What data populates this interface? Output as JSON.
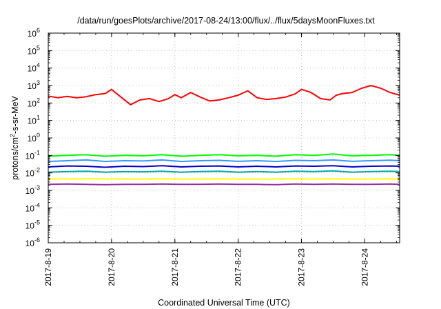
{
  "chart_data": {
    "type": "line",
    "title": "/data/run/goesPlots/archive/2017-08-24/13:00/flux/../flux/5daysMoonFluxes.txt",
    "xlabel": "Coordinated Universal Time (UTC)",
    "ylabel_parts": [
      "protons/cm",
      "2",
      "-s-sr-MeV"
    ],
    "y_scale": "log",
    "ylim_exp": [
      -6,
      6
    ],
    "xlim_day_offsets": [
      0,
      5.55
    ],
    "x_tick_labels": [
      "2017-8-19",
      "2017-8-20",
      "2017-8-21",
      "2017-8-22",
      "2017-8-23",
      "2017-8-24"
    ],
    "x_tick_day_offsets": [
      0,
      1,
      2,
      3,
      4,
      5
    ],
    "y_tick_exponents": [
      -6,
      -5,
      -4,
      -3,
      -2,
      -1,
      0,
      1,
      2,
      3,
      4,
      5,
      6
    ],
    "y_tick_base": "10",
    "grid": true,
    "legend": "none",
    "series": [
      {
        "color": "#ff0000",
        "approx": true,
        "x": [
          0.0,
          0.15,
          0.3,
          0.45,
          0.6,
          0.75,
          0.9,
          1.0,
          1.1,
          1.3,
          1.45,
          1.6,
          1.75,
          1.9,
          2.0,
          2.1,
          2.25,
          2.4,
          2.55,
          2.7,
          2.85,
          3.0,
          3.15,
          3.3,
          3.45,
          3.6,
          3.75,
          3.9,
          4.0,
          4.15,
          4.3,
          4.45,
          4.55,
          4.65,
          4.8,
          4.95,
          5.1,
          5.25,
          5.4,
          5.55
        ],
        "values": [
          250,
          200,
          240,
          200,
          230,
          300,
          350,
          600,
          300,
          80,
          150,
          180,
          120,
          180,
          300,
          200,
          400,
          220,
          130,
          150,
          200,
          280,
          500,
          200,
          160,
          180,
          220,
          330,
          600,
          400,
          180,
          150,
          280,
          350,
          400,
          700,
          1000,
          700,
          400,
          280
        ]
      },
      {
        "color": "#00ff00",
        "approx": true,
        "x": [
          0.0,
          0.3,
          0.6,
          0.9,
          1.2,
          1.5,
          1.8,
          2.1,
          2.4,
          2.7,
          3.0,
          3.3,
          3.6,
          3.9,
          4.2,
          4.5,
          4.8,
          5.1,
          5.4,
          5.55
        ],
        "values": [
          0.09,
          0.1,
          0.11,
          0.09,
          0.1,
          0.095,
          0.11,
          0.09,
          0.1,
          0.11,
          0.095,
          0.1,
          0.09,
          0.11,
          0.1,
          0.12,
          0.095,
          0.1,
          0.11,
          0.1
        ]
      },
      {
        "color": "#3399ff",
        "approx": true,
        "x": [
          0.0,
          0.3,
          0.6,
          0.9,
          1.2,
          1.5,
          1.8,
          2.1,
          2.4,
          2.7,
          3.0,
          3.3,
          3.6,
          3.9,
          4.2,
          4.5,
          4.8,
          5.1,
          5.4,
          5.55
        ],
        "values": [
          0.045,
          0.05,
          0.055,
          0.045,
          0.05,
          0.048,
          0.055,
          0.045,
          0.05,
          0.052,
          0.046,
          0.05,
          0.045,
          0.052,
          0.05,
          0.055,
          0.046,
          0.05,
          0.053,
          0.05
        ]
      },
      {
        "color": "#0000cc",
        "approx": true,
        "x": [
          0.0,
          0.3,
          0.6,
          0.9,
          1.2,
          1.5,
          1.8,
          2.1,
          2.4,
          2.7,
          3.0,
          3.3,
          3.6,
          3.9,
          4.2,
          4.5,
          4.8,
          5.1,
          5.4,
          5.55
        ],
        "values": [
          0.022,
          0.025,
          0.024,
          0.021,
          0.024,
          0.023,
          0.026,
          0.022,
          0.024,
          0.025,
          0.022,
          0.024,
          0.022,
          0.025,
          0.024,
          0.026,
          0.022,
          0.024,
          0.025,
          0.024
        ]
      },
      {
        "color": "#00aaaa",
        "approx": true,
        "x": [
          0.0,
          0.3,
          0.6,
          0.9,
          1.2,
          1.5,
          1.8,
          2.1,
          2.4,
          2.7,
          3.0,
          3.3,
          3.6,
          3.9,
          4.2,
          4.5,
          4.8,
          5.1,
          5.4,
          5.55
        ],
        "values": [
          0.011,
          0.012,
          0.0125,
          0.011,
          0.012,
          0.0115,
          0.0125,
          0.011,
          0.012,
          0.0125,
          0.011,
          0.012,
          0.011,
          0.0125,
          0.012,
          0.013,
          0.011,
          0.012,
          0.0125,
          0.012
        ]
      },
      {
        "color": "#ffff00",
        "approx": true,
        "x": [
          0.0,
          0.3,
          0.6,
          0.9,
          1.2,
          1.5,
          1.8,
          2.1,
          2.4,
          2.7,
          3.0,
          3.3,
          3.6,
          3.9,
          4.2,
          4.5,
          4.8,
          5.1,
          5.4,
          5.55
        ],
        "values": [
          0.0045,
          0.0045,
          0.0046,
          0.0045,
          0.0045,
          0.0045,
          0.0046,
          0.0045,
          0.0045,
          0.0046,
          0.0045,
          0.0045,
          0.0045,
          0.0046,
          0.0045,
          0.0046,
          0.0045,
          0.0045,
          0.0046,
          0.0045
        ]
      },
      {
        "color": "#993399",
        "approx": true,
        "x": [
          0.0,
          0.3,
          0.6,
          0.9,
          1.2,
          1.5,
          1.8,
          2.1,
          2.4,
          2.7,
          3.0,
          3.3,
          3.6,
          3.9,
          4.2,
          4.5,
          4.8,
          5.1,
          5.4,
          5.55
        ],
        "values": [
          0.0022,
          0.0023,
          0.0022,
          0.0021,
          0.0022,
          0.0022,
          0.0023,
          0.0022,
          0.0022,
          0.0023,
          0.0022,
          0.0022,
          0.0021,
          0.0023,
          0.0022,
          0.0023,
          0.0022,
          0.0022,
          0.0023,
          0.0022
        ]
      }
    ]
  }
}
